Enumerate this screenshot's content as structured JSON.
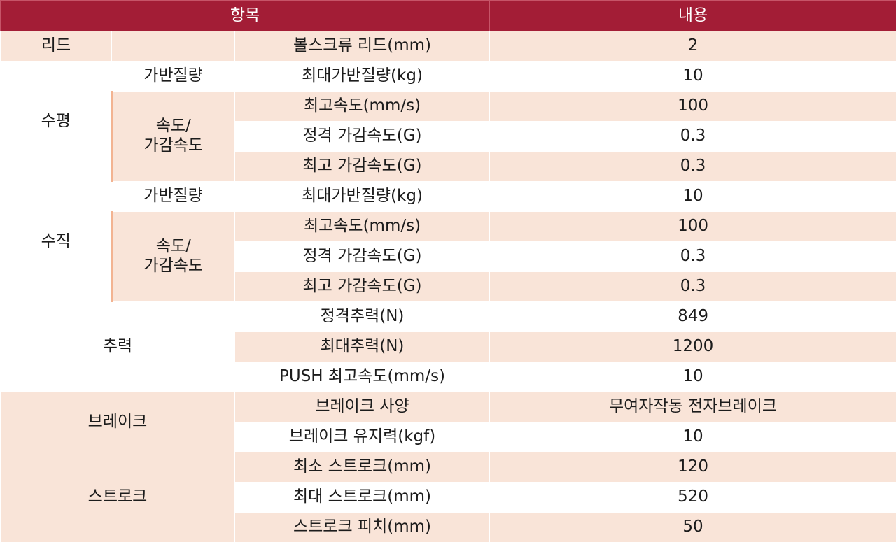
{
  "colors": {
    "header_bg": "#a31d36",
    "header_text": "#ffffff",
    "row_pink": "#f9e4d8",
    "row_white": "#ffffff",
    "accent_line": "#f3b391"
  },
  "header": {
    "item": "항목",
    "content": "내용"
  },
  "lead": {
    "category": "리드",
    "name": "볼스크류 리드(mm)",
    "value": "2"
  },
  "horizontal": {
    "category": "수평",
    "payload_group": "가반질량",
    "speed_group_line1": "속도/",
    "speed_group_line2": "가감속도",
    "rows": [
      {
        "name": "최대가반질량(kg)",
        "value": "10"
      },
      {
        "name": "최고속도(mm/s)",
        "value": "100"
      },
      {
        "name": "정격 가감속도(G)",
        "value": "0.3"
      },
      {
        "name": "최고 가감속도(G)",
        "value": "0.3"
      }
    ]
  },
  "vertical": {
    "category": "수직",
    "payload_group": "가반질량",
    "speed_group_line1": "속도/",
    "speed_group_line2": "가감속도",
    "rows": [
      {
        "name": "최대가반질량(kg)",
        "value": "10"
      },
      {
        "name": "최고속도(mm/s)",
        "value": "100"
      },
      {
        "name": "정격 가감속도(G)",
        "value": "0.3"
      },
      {
        "name": "최고 가감속도(G)",
        "value": "0.3"
      }
    ]
  },
  "thrust": {
    "category": "추력",
    "rows": [
      {
        "name": "정격추력(N)",
        "value": "849"
      },
      {
        "name": "최대추력(N)",
        "value": "1200"
      },
      {
        "name": "PUSH 최고속도(mm/s)",
        "value": "10"
      }
    ]
  },
  "brake": {
    "category": "브레이크",
    "rows": [
      {
        "name": "브레이크 사양",
        "value": "무여자작동 전자브레이크"
      },
      {
        "name": "브레이크 유지력(kgf)",
        "value": "10"
      }
    ]
  },
  "stroke": {
    "category": "스트로크",
    "rows": [
      {
        "name": "최소 스트로크(mm)",
        "value": "120"
      },
      {
        "name": "최대 스트로크(mm)",
        "value": "520"
      },
      {
        "name": "스트로크 피치(mm)",
        "value": "50"
      }
    ]
  }
}
